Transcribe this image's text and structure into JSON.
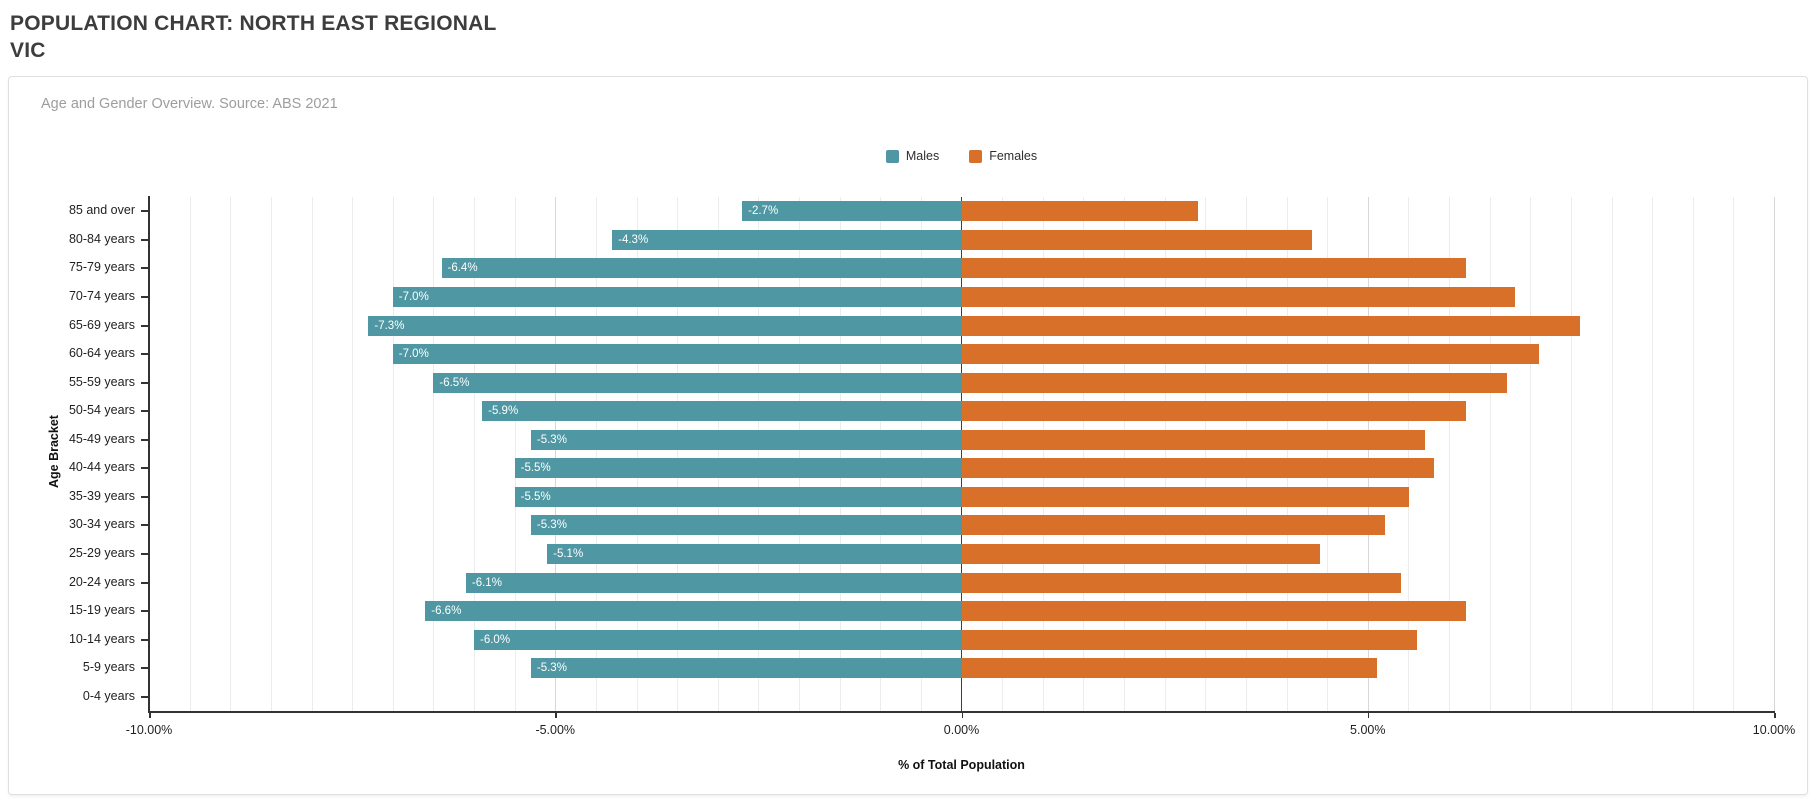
{
  "page": {
    "title": "POPULATION CHART: NORTH EAST REGIONAL VIC"
  },
  "chart": {
    "subtitle": "Age and Gender Overview. Source: ABS 2021"
  },
  "chart_data": {
    "type": "bar",
    "orientation": "horizontal",
    "title": "POPULATION CHART: NORTH EAST REGIONAL VIC",
    "subtitle": "Age and Gender Overview. Source: ABS 2021",
    "categories": [
      "85 and over",
      "80-84 years",
      "75-79 years",
      "70-74 years",
      "65-69 years",
      "60-64 years",
      "55-59 years",
      "50-54 years",
      "45-49 years",
      "40-44 years",
      "35-39 years",
      "30-34 years",
      "25-29 years",
      "20-24 years",
      "15-19 years",
      "10-14 years",
      "5-9 years",
      "0-4 years"
    ],
    "series": [
      {
        "name": "Males",
        "color": "#4F97A3",
        "values": [
          -2.7,
          -4.3,
          -6.4,
          -7.0,
          -7.3,
          -7.0,
          -6.5,
          -5.9,
          -5.3,
          -5.5,
          -5.5,
          -5.3,
          -5.1,
          -6.1,
          -6.6,
          -6.0,
          -5.3,
          0
        ],
        "labels": [
          "-2.7%",
          "-4.3%",
          "-6.4%",
          "-7.0%",
          "-7.3%",
          "-7.0%",
          "-6.5%",
          "-5.9%",
          "-5.3%",
          "-5.5%",
          "-5.5%",
          "-5.3%",
          "-5.1%",
          "-6.1%",
          "-6.6%",
          "-6.0%",
          "-5.3%",
          null
        ]
      },
      {
        "name": "Females",
        "color": "#D8702A",
        "values": [
          2.9,
          4.3,
          6.2,
          6.8,
          7.6,
          7.1,
          6.7,
          6.2,
          5.7,
          5.8,
          5.5,
          5.2,
          4.4,
          5.4,
          6.2,
          5.6,
          5.1,
          0
        ]
      }
    ],
    "xlabel": "% of Total Population",
    "ylabel": "Age Bracket",
    "xlim": [
      -10,
      10
    ],
    "x_ticks": [
      {
        "value": -10,
        "label": "-10.00%"
      },
      {
        "value": -5,
        "label": "-5.00%"
      },
      {
        "value": 0,
        "label": "0.00%"
      },
      {
        "value": 5,
        "label": "5.00%"
      },
      {
        "value": 10,
        "label": "10.00%"
      }
    ],
    "gridline_step": 0.5,
    "major_gridline_step": 5,
    "grid": true,
    "legend_position": "top-center",
    "value_labels_on": "Males"
  }
}
